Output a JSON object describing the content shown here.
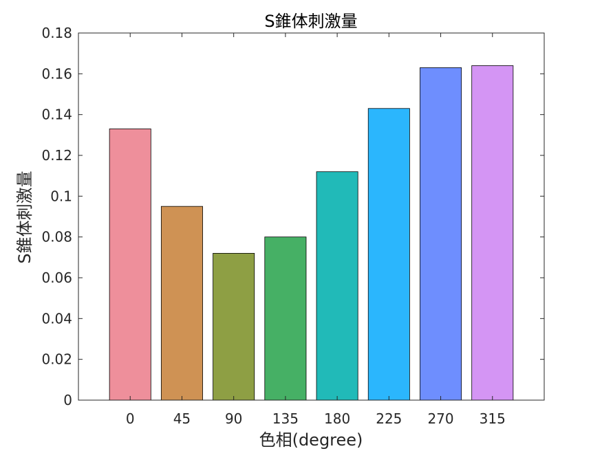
{
  "chart_data": {
    "type": "bar",
    "title": "S錐体刺激量",
    "xlabel": "色相(degree)",
    "ylabel": "S錐体刺激量",
    "categories": [
      "0",
      "45",
      "90",
      "135",
      "180",
      "225",
      "270",
      "315"
    ],
    "values": [
      0.133,
      0.095,
      0.072,
      0.08,
      0.112,
      0.143,
      0.163,
      0.164
    ],
    "colors": [
      "#ee8f9b",
      "#cf9254",
      "#8e9f44",
      "#46b065",
      "#21bab8",
      "#2bb6fd",
      "#6e8efe",
      "#d495f4"
    ],
    "ylim": [
      0,
      0.18
    ],
    "yticks": [
      "0",
      "0.02",
      "0.04",
      "0.06",
      "0.08",
      "0.1",
      "0.12",
      "0.14",
      "0.16",
      "0.18"
    ],
    "grid": false,
    "legend": "none"
  }
}
